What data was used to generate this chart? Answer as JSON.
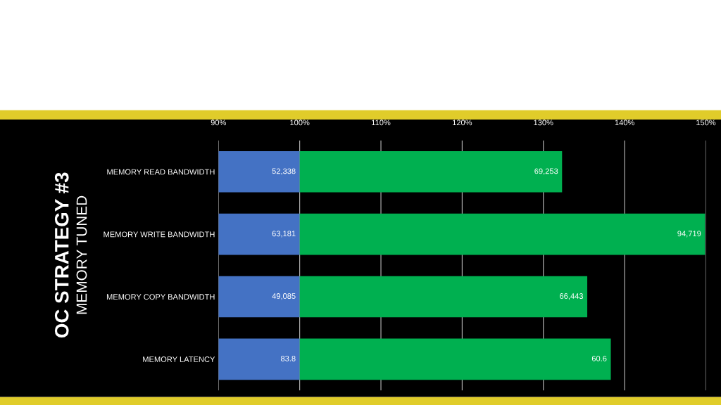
{
  "chart_data": {
    "type": "bar",
    "orientation": "horizontal",
    "title": "OC STRATEGY #3",
    "subtitle": "MEMORY TUNED",
    "categories": [
      "MEMORY READ BANDWIDTH",
      "MEMORY WRITE BANDWIDTH",
      "MEMORY COPY BANDWIDTH",
      "MEMORY LATENCY"
    ],
    "series": [
      {
        "color": "#4472c4",
        "base": [
          90,
          90,
          90,
          90
        ],
        "values": [
          10,
          10,
          10,
          10
        ]
      },
      {
        "color": "#00b050",
        "base": [
          100,
          100,
          100,
          100
        ],
        "values": [
          32.3,
          49.9,
          35.4,
          38.3
        ]
      }
    ],
    "annotations": [
      {
        "text": "52,338",
        "x": 100,
        "y": "MEMORY READ BANDWIDTH"
      },
      {
        "text": "63,181",
        "x": 100,
        "y": "MEMORY WRITE BANDWIDTH"
      },
      {
        "text": "49,085",
        "x": 100,
        "y": "MEMORY COPY BANDWIDTH"
      },
      {
        "text": "83.8",
        "x": 100,
        "y": "MEMORY LATENCY"
      },
      {
        "text": "69,253",
        "x": 132.3,
        "y": "MEMORY READ BANDWIDTH"
      },
      {
        "text": "94,719",
        "x": 149.9,
        "y": "MEMORY WRITE BANDWIDTH"
      },
      {
        "text": "66,443",
        "x": 135.4,
        "y": "MEMORY COPY BANDWIDTH"
      },
      {
        "text": "60.6",
        "x": 138.3,
        "y": "MEMORY LATENCY"
      }
    ],
    "xlim": [
      90,
      150
    ],
    "xticks": [
      {
        "value": 90,
        "label": "90%"
      },
      {
        "value": 100,
        "label": "100%"
      },
      {
        "value": 110,
        "label": "110%"
      },
      {
        "value": 120,
        "label": "120%"
      },
      {
        "value": 130,
        "label": "130%"
      },
      {
        "value": 140,
        "label": "140%"
      },
      {
        "value": 150,
        "label": "150%"
      }
    ],
    "grid": "x",
    "legend": false
  }
}
